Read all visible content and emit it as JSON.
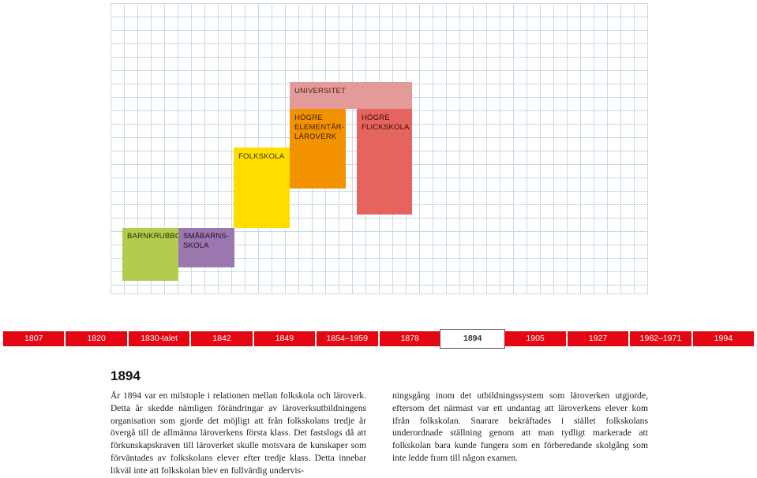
{
  "blocks": {
    "universitet": "UNIVERSITET",
    "hogre_elementarlaroverk": [
      "HÖGRE",
      "ELEMENTÄR-",
      "LÄROVERK"
    ],
    "hogre_flickskola": [
      "HÖGRE",
      "FLICKSKOLA"
    ],
    "folkskola": "FOLKSKOLA",
    "barnkrubbor": "BARNKRUBBOR",
    "smabarnsskola": [
      "SMÅBARNS-",
      "SKOLA"
    ]
  },
  "block_colors": {
    "universitet": "#e39b9a",
    "hogre_elementarlaroverk": "#f39200",
    "hogre_flickskola": "#e5645f",
    "folkskola": "#ffdd00",
    "barnkrubbor": "#b1cc4f",
    "smabarnsskola": "#9b77b0"
  },
  "timeline": {
    "accent": "#e30613",
    "items": [
      "1807",
      "1820",
      "1830-talet",
      "1842",
      "1849",
      "1854–1959",
      "1878",
      "1894",
      "1905",
      "1927",
      "1962–1971",
      "1994"
    ],
    "selected": "1894"
  },
  "article": {
    "title": "1894",
    "col1": "År 1894 var en milstople i relationen mellan folkskola och läroverk. Detta år skedde nämligen förändringar av läroverksutbildningens organisation som gjorde det möjligt att från folkskolans tredje år övergå till de allmänna läroverkens första klass. Det fastslogs då att förkunskapskraven till läroverket skulle motsvara de kunskaper som förväntades av folkskolans elever efter tredje klass. Detta innebar likväl inte att folkskolan blev en fullvärdig undervis-",
    "col2": "ningsgång inom det utbildningssystem som läroverken utgjorde, eftersom det närmast var ett undantag att läroverkens elever kom ifrån folkskolan. Snarare bekräftades i stället folkskolans underordnade ställning genom att man tydligt markerade att folkskolan bara kunde fungera som en förberedande skolgång som inte ledde fram till någon examen."
  }
}
